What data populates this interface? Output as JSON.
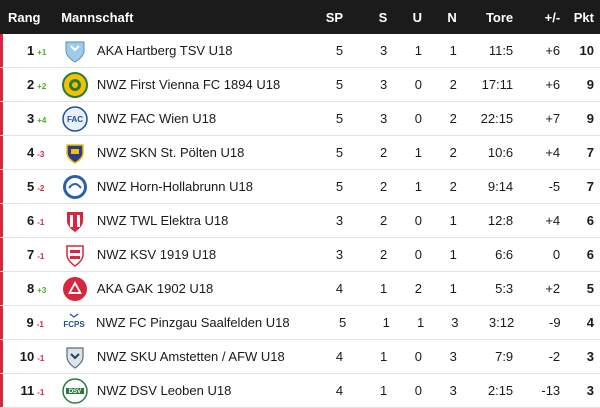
{
  "header": {
    "rang": "Rang",
    "mannschaft": "Mannschaft",
    "sp": "SP",
    "s": "S",
    "u": "U",
    "n": "N",
    "tore": "Tore",
    "diff": "+/-",
    "pkt": "Pkt"
  },
  "rows": [
    {
      "rank": "1",
      "change": "+1",
      "dir": "up",
      "team": "AKA Hartberg TSV U18",
      "logo_icon": "hartberg-crest-icon",
      "sp": "5",
      "s": "3",
      "u": "1",
      "n": "1",
      "tore": "11:5",
      "diff": "+6",
      "pkt": "10"
    },
    {
      "rank": "2",
      "change": "+2",
      "dir": "up",
      "team": "NWZ First Vienna FC 1894 U18",
      "logo_icon": "vienna-crest-icon",
      "sp": "5",
      "s": "3",
      "u": "0",
      "n": "2",
      "tore": "17:11",
      "diff": "+6",
      "pkt": "9"
    },
    {
      "rank": "3",
      "change": "+4",
      "dir": "up",
      "team": "NWZ FAC Wien U18",
      "logo_icon": "fac-crest-icon",
      "sp": "5",
      "s": "3",
      "u": "0",
      "n": "2",
      "tore": "22:15",
      "diff": "+7",
      "pkt": "9"
    },
    {
      "rank": "4",
      "change": "-3",
      "dir": "down",
      "team": "NWZ SKN St. Pölten U18",
      "logo_icon": "skn-crest-icon",
      "sp": "5",
      "s": "2",
      "u": "1",
      "n": "2",
      "tore": "10:6",
      "diff": "+4",
      "pkt": "7"
    },
    {
      "rank": "5",
      "change": "-2",
      "dir": "down",
      "team": "NWZ Horn-Hollabrunn U18",
      "logo_icon": "horn-crest-icon",
      "sp": "5",
      "s": "2",
      "u": "1",
      "n": "2",
      "tore": "9:14",
      "diff": "-5",
      "pkt": "7"
    },
    {
      "rank": "6",
      "change": "-1",
      "dir": "down",
      "team": "NWZ TWL Elektra U18",
      "logo_icon": "elektra-crest-icon",
      "sp": "3",
      "s": "2",
      "u": "0",
      "n": "1",
      "tore": "12:8",
      "diff": "+4",
      "pkt": "6"
    },
    {
      "rank": "7",
      "change": "-1",
      "dir": "down",
      "team": "NWZ KSV 1919 U18",
      "logo_icon": "ksv-crest-icon",
      "sp": "3",
      "s": "2",
      "u": "0",
      "n": "1",
      "tore": "6:6",
      "diff": "0",
      "pkt": "6"
    },
    {
      "rank": "8",
      "change": "+3",
      "dir": "up",
      "team": "AKA GAK 1902 U18",
      "logo_icon": "gak-crest-icon",
      "sp": "4",
      "s": "1",
      "u": "2",
      "n": "1",
      "tore": "5:3",
      "diff": "+2",
      "pkt": "5"
    },
    {
      "rank": "9",
      "change": "-1",
      "dir": "down",
      "team": "NWZ FC Pinzgau Saalfelden U18",
      "logo_icon": "fcps-crest-icon",
      "sp": "5",
      "s": "1",
      "u": "1",
      "n": "3",
      "tore": "3:12",
      "diff": "-9",
      "pkt": "4"
    },
    {
      "rank": "10",
      "change": "-1",
      "dir": "down",
      "team": "NWZ SKU Amstetten / AFW U18",
      "logo_icon": "sku-crest-icon",
      "sp": "4",
      "s": "1",
      "u": "0",
      "n": "3",
      "tore": "7:9",
      "diff": "-2",
      "pkt": "3"
    },
    {
      "rank": "11",
      "change": "-1",
      "dir": "down",
      "team": "NWZ DSV Leoben U18",
      "logo_icon": "dsv-crest-icon",
      "sp": "4",
      "s": "1",
      "u": "0",
      "n": "3",
      "tore": "2:15",
      "diff": "-13",
      "pkt": "3"
    }
  ],
  "colors": {
    "header_bg": "#1b1b1b",
    "accent_bar": "#d7263d",
    "up": "#4caf20",
    "down": "#d7263d"
  },
  "logos": {
    "FAC_text": "FAC",
    "FCPS_text": "FCPS",
    "DSV_text": "DSV"
  }
}
